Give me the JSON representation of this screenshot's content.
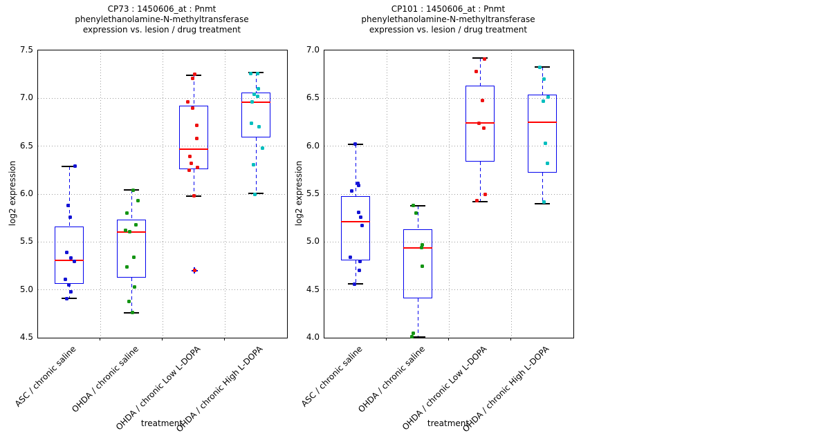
{
  "styles": {
    "background": "#ffffff",
    "box_edge_color": "#0000ee",
    "median_color": "#ff0000",
    "whisker_color": "#0000ee",
    "cap_color": "#000000",
    "grid_color": "#999999",
    "axis_color": "#000000",
    "outlier_marker_color": "#0000ee"
  },
  "chart_data": [
    {
      "type": "boxplot-scatter",
      "title_lines": [
        "CP73 : 1450606_at : Pnmt",
        "phenylethanolamine-N-methyltransferase",
        "expression vs. lesion / drug treatment"
      ],
      "xlabel": "treatment",
      "ylabel": "log2 expression",
      "ylim": [
        4.5,
        7.5
      ],
      "yticks": [
        7.5,
        7.0,
        6.5,
        6.0,
        5.5,
        5.0,
        4.5
      ],
      "grid": "dotted",
      "legend": "none",
      "categories": [
        "ASC / chronic saline",
        "OHDA / chronic saline",
        "OHDA / chronic Low L-DOPA",
        "OHDA / chronic High L-DOPA"
      ],
      "groups": [
        {
          "label": "ASC / chronic saline",
          "point_color": "#1414d4",
          "box": {
            "whisker_low": 4.91,
            "q1": 5.06,
            "median": 5.31,
            "q3": 5.66,
            "whisker_high": 6.29
          },
          "points": [
            [
              6.29,
              8
            ],
            [
              5.88,
              -2
            ],
            [
              5.76,
              1
            ],
            [
              5.39,
              -4
            ],
            [
              5.33,
              2
            ],
            [
              5.3,
              7
            ],
            [
              5.11,
              -6
            ],
            [
              5.05,
              -1
            ],
            [
              4.98,
              2
            ],
            [
              4.91,
              -4
            ]
          ],
          "outliers": []
        },
        {
          "label": "OHDA / chronic saline",
          "point_color": "#149414",
          "box": {
            "whisker_low": 4.76,
            "q1": 5.13,
            "median": 5.6,
            "q3": 5.73,
            "whisker_high": 6.04
          },
          "points": [
            [
              6.04,
              2
            ],
            [
              5.93,
              9
            ],
            [
              5.8,
              -7
            ],
            [
              5.68,
              6
            ],
            [
              5.62,
              -9
            ],
            [
              5.61,
              -3
            ],
            [
              5.34,
              3
            ],
            [
              5.24,
              -7
            ],
            [
              5.03,
              4
            ],
            [
              4.88,
              -4
            ],
            [
              4.76,
              1
            ]
          ],
          "outliers": []
        },
        {
          "label": "OHDA / chronic Low L-DOPA",
          "point_color": "#ee1111",
          "box": {
            "whisker_low": 5.98,
            "q1": 6.26,
            "median": 6.47,
            "q3": 6.92,
            "whisker_high": 7.24
          },
          "points": [
            [
              7.25,
              1
            ],
            [
              7.21,
              -2
            ],
            [
              6.96,
              -9
            ],
            [
              6.9,
              -2
            ],
            [
              6.72,
              4
            ],
            [
              6.58,
              4
            ],
            [
              6.39,
              -6
            ],
            [
              6.32,
              -4
            ],
            [
              6.28,
              5
            ],
            [
              6.25,
              -7
            ],
            [
              5.98,
              0
            ]
          ],
          "outliers": [
            [
              5.2,
              1
            ]
          ]
        },
        {
          "label": "OHDA / chronic High L-DOPA",
          "point_color": "#00bebe",
          "box": {
            "whisker_low": 6.01,
            "q1": 6.59,
            "median": 6.96,
            "q3": 7.06,
            "whisker_high": 7.27
          },
          "points": [
            [
              7.26,
              -8
            ],
            [
              7.26,
              2
            ],
            [
              7.1,
              3
            ],
            [
              7.04,
              -3
            ],
            [
              7.02,
              2
            ],
            [
              6.96,
              -6
            ],
            [
              6.74,
              -7
            ],
            [
              6.7,
              4
            ],
            [
              6.48,
              9
            ],
            [
              6.31,
              -4
            ],
            [
              6.0,
              -2
            ]
          ],
          "outliers": []
        }
      ]
    },
    {
      "type": "boxplot-scatter",
      "title_lines": [
        "CP101 : 1450606_at : Pnmt",
        "phenylethanolamine-N-methyltransferase",
        "expression vs. lesion / drug treatment"
      ],
      "xlabel": "treatment",
      "ylabel": "log2 expression",
      "ylim": [
        4.0,
        7.0
      ],
      "yticks": [
        7.0,
        6.5,
        6.0,
        5.5,
        5.0,
        4.5,
        4.0
      ],
      "grid": "dotted",
      "legend": "none",
      "categories": [
        "ASC / chronic saline",
        "OHDA / chronic saline",
        "OHDA / chronic Low L-DOPA",
        "OHDA / chronic High L-DOPA"
      ],
      "groups": [
        {
          "label": "ASC / chronic saline",
          "point_color": "#1414d4",
          "box": {
            "whisker_low": 4.56,
            "q1": 4.81,
            "median": 5.21,
            "q3": 5.48,
            "whisker_high": 6.02
          },
          "points": [
            [
              6.02,
              -1
            ],
            [
              5.61,
              3
            ],
            [
              5.59,
              4
            ],
            [
              5.53,
              -6
            ],
            [
              5.31,
              4
            ],
            [
              5.26,
              7
            ],
            [
              5.17,
              9
            ],
            [
              4.84,
              -8
            ],
            [
              4.8,
              6
            ],
            [
              4.7,
              5
            ],
            [
              4.56,
              -2
            ]
          ],
          "outliers": []
        },
        {
          "label": "OHDA / chronic saline",
          "point_color": "#149414",
          "box": {
            "whisker_low": 4.01,
            "q1": 4.41,
            "median": 4.94,
            "q3": 5.13,
            "whisker_high": 5.38
          },
          "points": [
            [
              5.38,
              -7
            ],
            [
              5.3,
              -3
            ],
            [
              4.97,
              6
            ],
            [
              4.94,
              5
            ],
            [
              4.75,
              6
            ],
            [
              4.05,
              -7
            ],
            [
              4.01,
              -9
            ]
          ],
          "outliers": []
        },
        {
          "label": "OHDA / chronic Low L-DOPA",
          "point_color": "#ee1111",
          "box": {
            "whisker_low": 5.42,
            "q1": 5.84,
            "median": 6.24,
            "q3": 6.63,
            "whisker_high": 6.92
          },
          "points": [
            [
              6.91,
              6
            ],
            [
              6.78,
              -6
            ],
            [
              6.48,
              3
            ],
            [
              6.24,
              -2
            ],
            [
              6.19,
              5
            ],
            [
              5.5,
              7
            ],
            [
              5.43,
              -5
            ]
          ],
          "outliers": []
        },
        {
          "label": "OHDA / chronic High L-DOPA",
          "point_color": "#00bebe",
          "box": {
            "whisker_low": 5.4,
            "q1": 5.72,
            "median": 6.25,
            "q3": 6.54,
            "whisker_high": 6.83
          },
          "points": [
            [
              6.82,
              -4
            ],
            [
              6.7,
              2
            ],
            [
              6.51,
              8
            ],
            [
              6.47,
              1
            ],
            [
              6.03,
              4
            ],
            [
              5.82,
              7
            ],
            [
              5.42,
              2
            ]
          ],
          "outliers": []
        }
      ]
    }
  ]
}
